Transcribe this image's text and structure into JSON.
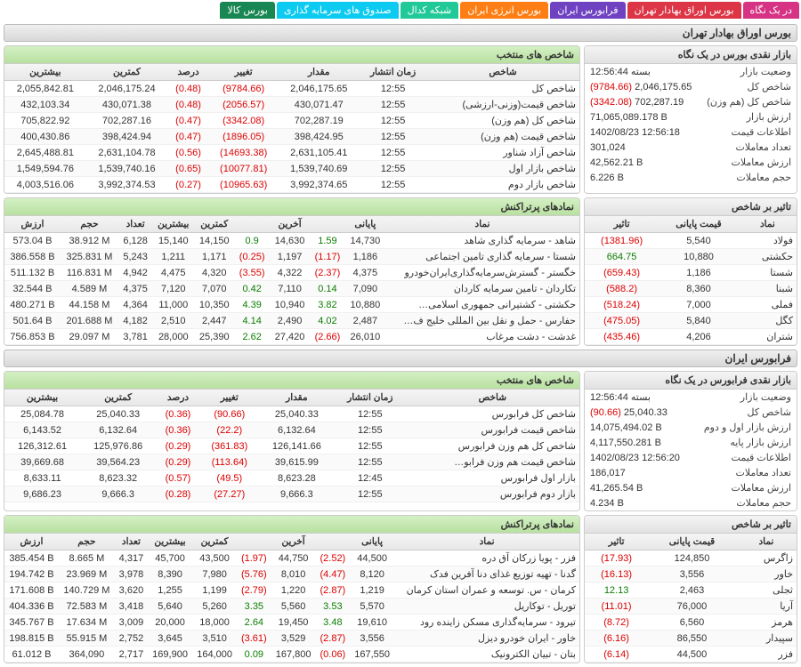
{
  "nav": [
    "در یک نگاه",
    "بورس اوراق بهادار تهران",
    "فرابورس ایران",
    "بورس انرژی ایران",
    "شبکه کدال",
    "صندوق های سرمایه گذاری",
    "بورس کالا"
  ],
  "tse": {
    "title": "بورس اوراق بهادار تهران",
    "glance": {
      "title": "بازار نقدی بورس در یک نگاه",
      "rows": [
        {
          "l": "وضعیت بازار",
          "v": "بسته 12:56:44"
        },
        {
          "l": "شاخص کل",
          "v": "2,046,175.65",
          "d": "(9784.66)",
          "dc": "neg"
        },
        {
          "l": "شاخص کل (هم وزن)",
          "v": "702,287.19",
          "d": "(3342.08)",
          "dc": "neg"
        },
        {
          "l": "ارزش بازار",
          "v": "71,065,089.178 B"
        },
        {
          "l": "اطلاعات قیمت",
          "v": "1402/08/23 12:56:18"
        },
        {
          "l": "تعداد معاملات",
          "v": "301,024"
        },
        {
          "l": "ارزش معاملات",
          "v": "42,562.21 B"
        },
        {
          "l": "حجم معاملات",
          "v": "6.226 B"
        }
      ]
    },
    "indices": {
      "title": "شاخص های منتخب",
      "cols": [
        "شاخص",
        "زمان انتشار",
        "مقدار",
        "تغییر",
        "درصد",
        "کمترین",
        "بیشترین"
      ],
      "rows": [
        [
          "شاخص کل",
          "12:55",
          "2,046,175.65",
          "(9784.66)",
          "(0.48)",
          "2,046,175.24",
          "2,055,842.81"
        ],
        [
          "شاخص قیمت(وزنی-ارزشی)",
          "12:55",
          "430,071.47",
          "(2056.57)",
          "(0.48)",
          "430,071.38",
          "432,103.34"
        ],
        [
          "شاخص کل (هم وزن)",
          "12:55",
          "702,287.19",
          "(3342.08)",
          "(0.47)",
          "702,287.16",
          "705,822.92"
        ],
        [
          "شاخص قیمت (هم وزن)",
          "12:55",
          "398,424.95",
          "(1896.05)",
          "(0.47)",
          "398,424.94",
          "400,430.86"
        ],
        [
          "شاخص آزاد شناور",
          "12:55",
          "2,631,105.41",
          "(14693.38)",
          "(0.56)",
          "2,631,104.78",
          "2,645,488.81"
        ],
        [
          "شاخص بازار اول",
          "12:55",
          "1,539,740.69",
          "(10077.81)",
          "(0.65)",
          "1,539,740.16",
          "1,549,594.76"
        ],
        [
          "شاخص بازار دوم",
          "12:55",
          "3,992,374.65",
          "(10965.63)",
          "(0.27)",
          "3,992,374.53",
          "4,003,516.06"
        ]
      ],
      "negcols": [
        3,
        4
      ]
    },
    "impact": {
      "title": "تاثیر بر شاخص",
      "cols": [
        "نماد",
        "قیمت پایانی",
        "تاثیر"
      ],
      "rows": [
        [
          "فولاد",
          "5,540",
          "(1381.96)",
          "neg"
        ],
        [
          "حکشتی",
          "10,880",
          "664.75",
          "pos"
        ],
        [
          "شستا",
          "1,186",
          "(659.43)",
          "neg"
        ],
        [
          "شبنا",
          "8,360",
          "(588.2)",
          "neg"
        ],
        [
          "فملی",
          "7,000",
          "(518.24)",
          "neg"
        ],
        [
          "کگل",
          "5,840",
          "(475.05)",
          "neg"
        ],
        [
          "شتران",
          "4,206",
          "(435.46)",
          "neg"
        ]
      ]
    },
    "top": {
      "title": "نمادهای پرتراکنش",
      "cols": [
        "نماد",
        "پایانی",
        "",
        "آخرین",
        "",
        "کمترین",
        "بیشترین",
        "تعداد",
        "حجم",
        "ارزش"
      ],
      "rows": [
        [
          "شاهد - سرمایه گذاری شاهد",
          "14,730",
          "1.59",
          "14,630",
          "0.9",
          "14,150",
          "15,140",
          "6,128",
          "38.912 M",
          "573.04 B",
          "pos",
          "pos"
        ],
        [
          "شستا - سرمایه گذاری تامین اجتماعی",
          "1,186",
          "(1.17)",
          "1,197",
          "(0.25)",
          "1,171",
          "1,211",
          "5,243",
          "325.831 M",
          "386.558 B",
          "neg",
          "neg"
        ],
        [
          "خگستر - گسترش‌سرمایه‌گذاری‌ایران‌خودرو",
          "4,375",
          "(2.37)",
          "4,322",
          "(3.55)",
          "4,320",
          "4,475",
          "4,942",
          "116.831 M",
          "511.132 B",
          "neg",
          "neg"
        ],
        [
          "تکاردان - تامین سرمایه کاردان",
          "7,090",
          "0.14",
          "7,110",
          "0.42",
          "7,070",
          "7,120",
          "4,375",
          "4.589 M",
          "32.544 B",
          "pos",
          "pos"
        ],
        [
          "حکشتی - کشتیرانی جمهوری اسلامی…",
          "10,880",
          "3.82",
          "10,940",
          "4.39",
          "10,350",
          "11,000",
          "4,364",
          "44.158 M",
          "480.271 B",
          "pos",
          "pos"
        ],
        [
          "حفارس - حمل و نقل بین المللی خلیج ف…",
          "2,487",
          "4.02",
          "2,490",
          "4.14",
          "2,447",
          "2,510",
          "4,182",
          "201.688 M",
          "501.64 B",
          "pos",
          "pos"
        ],
        [
          "غدشت - دشت مرغاب",
          "26,010",
          "(2.66)",
          "27,420",
          "2.62",
          "25,390",
          "28,000",
          "3,781",
          "29.097 M",
          "756.853 B",
          "neg",
          "pos"
        ]
      ]
    }
  },
  "ifb": {
    "title": "فرابورس ایران",
    "glance": {
      "title": "بازار نقدی فرابورس در یک نگاه",
      "rows": [
        {
          "l": "وضعیت بازار",
          "v": "بسته 12:56:44"
        },
        {
          "l": "شاخص کل",
          "v": "25,040.33",
          "d": "(90.66)",
          "dc": "neg"
        },
        {
          "l": "ارزش بازار اول و دوم",
          "v": "14,075,494.02 B"
        },
        {
          "l": "ارزش بازار پایه",
          "v": "4,117,550.281 B"
        },
        {
          "l": "اطلاعات قیمت",
          "v": "1402/08/23 12:56:20"
        },
        {
          "l": "تعداد معاملات",
          "v": "186,017"
        },
        {
          "l": "ارزش معاملات",
          "v": "41,265.54 B"
        },
        {
          "l": "حجم معاملات",
          "v": "4.234 B"
        }
      ]
    },
    "indices": {
      "title": "شاخص های منتخب",
      "cols": [
        "شاخص",
        "زمان انتشار",
        "مقدار",
        "تغییر",
        "درصد",
        "کمترین",
        "بیشترین"
      ],
      "rows": [
        [
          "شاخص کل فرابورس",
          "12:55",
          "25,040.33",
          "(90.66)",
          "(0.36)",
          "25,040.33",
          "25,084.78"
        ],
        [
          "شاخص قیمت فرابورس",
          "12:55",
          "6,132.64",
          "(22.2)",
          "(0.36)",
          "6,132.64",
          "6,143.52"
        ],
        [
          "شاخص کل هم وزن فرابورس",
          "12:55",
          "126,141.66",
          "(361.83)",
          "(0.29)",
          "125,976.86",
          "126,312.61"
        ],
        [
          "شاخص قیمت هم وزن فرابو…",
          "12:55",
          "39,615.99",
          "(113.64)",
          "(0.29)",
          "39,564.23",
          "39,669.68"
        ],
        [
          "بازار اول فرابورس",
          "12:45",
          "8,623.28",
          "(49.5)",
          "(0.57)",
          "8,623.32",
          "8,633.11"
        ],
        [
          "بازار دوم فرابورس",
          "12:55",
          "9,666.3",
          "(27.27)",
          "(0.28)",
          "9,666.3",
          "9,686.23"
        ]
      ],
      "negcols": [
        3,
        4
      ]
    },
    "impact": {
      "title": "تاثیر بر شاخص",
      "cols": [
        "نماد",
        "قیمت پایانی",
        "تاثیر"
      ],
      "rows": [
        [
          "زاگرس",
          "124,850",
          "(17.93)",
          "neg"
        ],
        [
          "خاور",
          "3,556",
          "(16.13)",
          "neg"
        ],
        [
          "ثجلی",
          "2,463",
          "12.13",
          "pos"
        ],
        [
          "آریا",
          "76,000",
          "(11.01)",
          "neg"
        ],
        [
          "هرمز",
          "6,560",
          "(8.72)",
          "neg"
        ],
        [
          "سپیدار",
          "86,550",
          "(6.16)",
          "neg"
        ],
        [
          "فزر",
          "44,500",
          "(6.14)",
          "neg"
        ]
      ]
    },
    "top": {
      "title": "نمادهای پرتراکنش",
      "cols": [
        "نماد",
        "پایانی",
        "",
        "آخرین",
        "",
        "کمترین",
        "بیشترین",
        "تعداد",
        "حجم",
        "ارزش"
      ],
      "rows": [
        [
          "فزر - پویا زرکان آق دره",
          "44,500",
          "(2.52)",
          "44,750",
          "(1.97)",
          "43,500",
          "45,700",
          "4,317",
          "8.665 M",
          "385.454 B",
          "neg",
          "neg"
        ],
        [
          "گدنا - تهیه توزیع غذای دنا آفرین فدک",
          "8,120",
          "(4.47)",
          "8,010",
          "(5.76)",
          "7,980",
          "8,390",
          "3,978",
          "23.969 M",
          "194.742 B",
          "neg",
          "neg"
        ],
        [
          "کرمان - س. توسعه و عمران استان کرمان",
          "1,219",
          "(2.87)",
          "1,220",
          "(2.79)",
          "1,199",
          "1,255",
          "3,620",
          "140.729 M",
          "171.608 B",
          "neg",
          "neg"
        ],
        [
          "توریل - توکاریل",
          "5,570",
          "3.53",
          "5,560",
          "3.35",
          "5,260",
          "5,640",
          "3,418",
          "72.583 M",
          "404.336 B",
          "pos",
          "pos"
        ],
        [
          "تیرود - سرمایه‌گذاری مسکن زاینده رود",
          "19,610",
          "3.48",
          "19,450",
          "2.64",
          "18,000",
          "20,000",
          "3,009",
          "17.634 M",
          "345.767 B",
          "pos",
          "pos"
        ],
        [
          "خاور - ایران خودرو دیزل",
          "3,556",
          "(2.87)",
          "3,529",
          "(3.61)",
          "3,510",
          "3,645",
          "2,752",
          "55.915 M",
          "198.815 B",
          "neg",
          "neg"
        ],
        [
          "بتان - تبیان الکترونیک",
          "167,550",
          "(0.06)",
          "167,800",
          "0.09",
          "164,000",
          "169,900",
          "2,717",
          "364,090",
          "61.012 B",
          "neg",
          "pos"
        ]
      ]
    }
  }
}
